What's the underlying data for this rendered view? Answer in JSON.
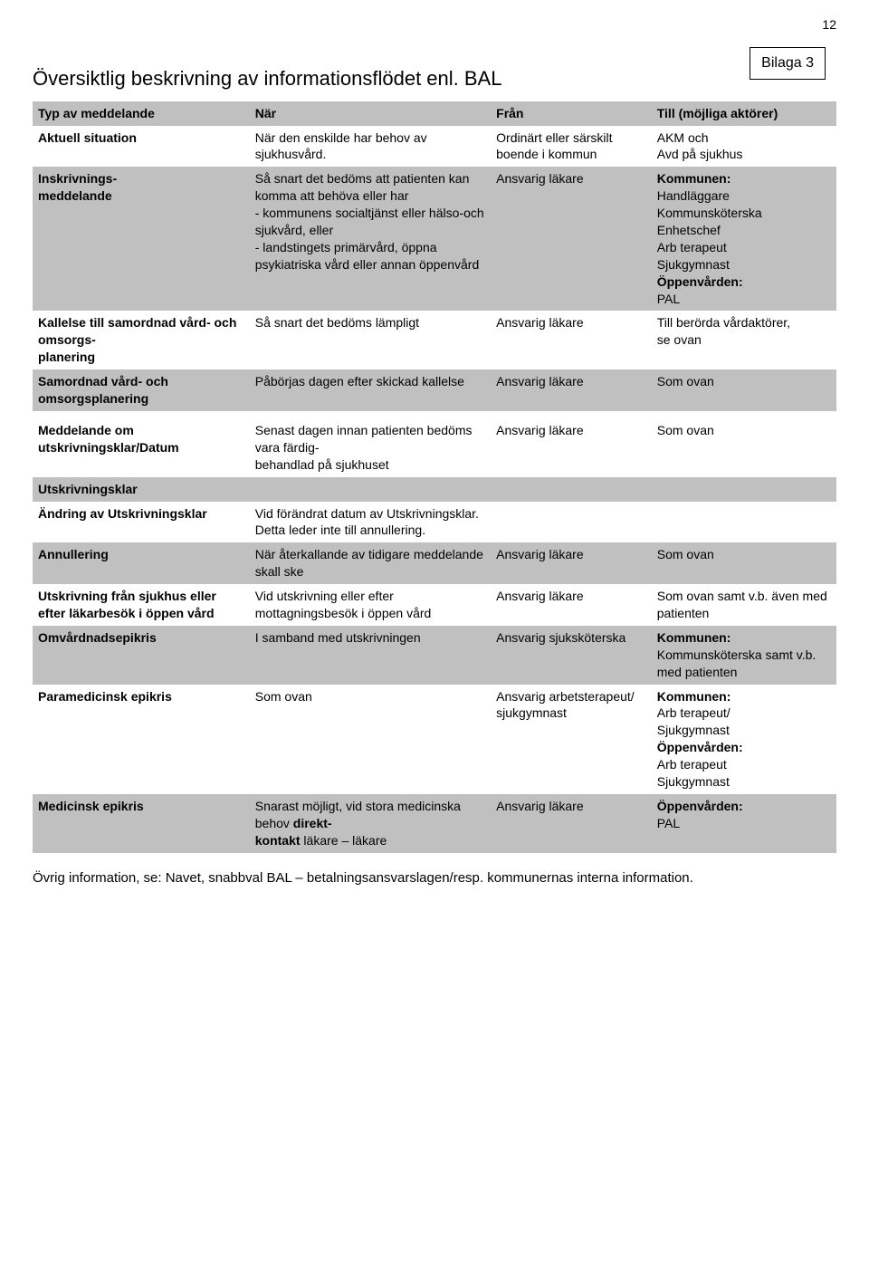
{
  "page_number": "12",
  "bilaga": "Bilaga 3",
  "title": "Översiktlig beskrivning av informationsflödet enl. BAL",
  "headers": [
    "Typ av meddelande",
    "När",
    "Från",
    "Till (möjliga aktörer)"
  ],
  "rows": [
    {
      "shade": false,
      "bold1": true,
      "c1": "Aktuell situation",
      "c2": "När den enskilde har behov av sjukhusvård.",
      "c3": "Ordinärt eller särskilt boende i kommun",
      "c4": "AKM och\nAvd på sjukhus"
    },
    {
      "shade": true,
      "bold1": true,
      "c1": "Inskrivnings-\nmeddelande",
      "c2": "Så snart det bedöms att patienten kan komma att behöva eller har\n- kommunens socialtjänst eller hälso-och sjukvård, eller\n- landstingets primärvård, öppna psykiatriska vård eller annan öppenvård",
      "c3": "Ansvarig läkare",
      "c4": "Kommunen:\nHandläggare\nKommunsköterska\nEnhetschef\nArb terapeut\nSjukgymnast\nÖppenvården:\nPAL"
    },
    {
      "shade": false,
      "bold1": true,
      "c1": "Kallelse till samordnad vård- och omsorgs-\nplanering",
      "c2": "Så snart det bedöms lämpligt",
      "c3": "Ansvarig läkare",
      "c4": "Till berörda vårdaktörer,\n se ovan"
    },
    {
      "shade": true,
      "bold1": true,
      "c1": "Samordnad vård- och omsorgsplanering",
      "c2": "Påbörjas dagen efter skickad kallelse",
      "c3": "Ansvarig läkare",
      "c4": "Som ovan"
    },
    {
      "shade": false,
      "bold1": true,
      "c1": "",
      "c2": "",
      "c3": "",
      "c4": ""
    },
    {
      "shade": false,
      "bold1": true,
      "c1": "Meddelande om utskrivningsklar/Datum",
      "c2": "Senast dagen innan patienten bedöms vara färdig-\nbehandlad på sjukhuset",
      "c3": "Ansvarig läkare",
      "c4": "Som ovan"
    },
    {
      "shade": true,
      "bold1": true,
      "c1": "Utskrivningsklar",
      "c2": "",
      "c3": "",
      "c4": ""
    },
    {
      "shade": false,
      "bold1": true,
      "c1": "Ändring av Utskrivningsklar",
      "c2": "Vid förändrat datum av Utskrivningsklar. Detta leder inte till annullering.",
      "c3": "",
      "c4": ""
    },
    {
      "shade": true,
      "bold1": true,
      "c1": "Annullering",
      "c2": "När återkallande av tidigare meddelande skall ske",
      "c3": "Ansvarig läkare",
      "c4": "Som ovan"
    },
    {
      "shade": false,
      "bold1": true,
      "c1": "Utskrivning från sjukhus eller efter läkarbesök i öppen vård",
      "c2": "Vid utskrivning eller efter mottagningsbesök i öppen vård",
      "c3": "Ansvarig läkare",
      "c4": "Som ovan samt v.b. även med patienten"
    },
    {
      "shade": true,
      "bold1": true,
      "c1": "Omvårdnadsepikris",
      "c2": "I samband med utskrivningen",
      "c3": "Ansvarig sjuksköterska",
      "c4": "Kommunen:\nKommunsköterska samt v.b. med patienten"
    },
    {
      "shade": false,
      "bold1": true,
      "c1": "Paramedicinsk epikris",
      "c2": "Som ovan",
      "c3": "Ansvarig arbetsterapeut/\nsjukgymnast",
      "c4": "Kommunen:\nArb terapeut/\nSjukgymnast\nÖppenvården:\nArb terapeut\nSjukgymnast"
    },
    {
      "shade": true,
      "bold1": true,
      "c1": "Medicinsk epikris",
      "c2": "Snarast möjligt, vid stora medicinska behov direkt-\nkontakt läkare – läkare",
      "c3": "Ansvarig läkare",
      "c4": "Öppenvården:\nPAL"
    }
  ],
  "c4_bold_prefixes": [
    "Kommunen:",
    "Öppenvården:"
  ],
  "c2_bold_words": [
    "direkt-\nkontakt"
  ],
  "footnote": "Övrig information, se: Navet, snabbval BAL – betalningsansvarslagen/resp. kommunernas interna information."
}
